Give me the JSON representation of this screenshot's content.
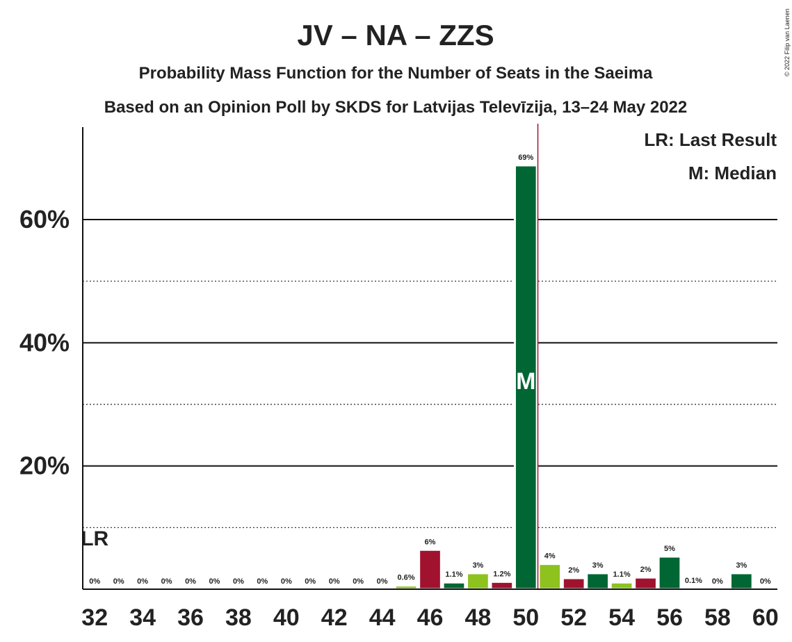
{
  "chart_data": {
    "type": "bar",
    "title": "JV – NA – ZZS",
    "subtitle": "Probability Mass Function for the Number of Seats in the Saeima",
    "subtitle2": "Based on an Opinion Poll by SKDS for Latvijas Televīzija, 13–24 May 2022",
    "copyright": "© 2022 Filip van Laenen",
    "x": [
      32,
      33,
      34,
      35,
      36,
      37,
      38,
      39,
      40,
      41,
      42,
      43,
      44,
      45,
      46,
      47,
      48,
      49,
      50,
      51,
      52,
      53,
      54,
      55,
      56,
      57,
      58,
      59,
      60
    ],
    "values": [
      0,
      0,
      0,
      0,
      0,
      0,
      0,
      0,
      0,
      0,
      0,
      0,
      0,
      0.6,
      6.4,
      1.1,
      2.6,
      1.2,
      68.8,
      4.1,
      1.8,
      2.6,
      1.1,
      1.9,
      5.3,
      0.1,
      0,
      2.6,
      0
    ],
    "value_labels": [
      "0%",
      "0%",
      "0%",
      "0%",
      "0%",
      "0%",
      "0%",
      "0%",
      "0%",
      "0%",
      "0%",
      "0%",
      "0%",
      "0.6%",
      "6%",
      "1.1%",
      "3%",
      "1.2%",
      "69%",
      "4%",
      "2%",
      "3%",
      "1.1%",
      "2%",
      "5%",
      "0.1%",
      "0%",
      "3%",
      "0%"
    ],
    "colors": [
      "#006633",
      "#8dc21f",
      "#a0122e",
      "#006633",
      "#8dc21f",
      "#a0122e",
      "#006633",
      "#8dc21f",
      "#a0122e",
      "#006633",
      "#8dc21f",
      "#a0122e",
      "#006633",
      "#8dc21f",
      "#a0122e",
      "#006633",
      "#8dc21f",
      "#a0122e",
      "#006633",
      "#8dc21f",
      "#a0122e",
      "#006633",
      "#8dc21f",
      "#a0122e",
      "#006633",
      "#8dc21f",
      "#a0122e",
      "#006633",
      "#8dc21f"
    ],
    "xlim": [
      31.5,
      60.5
    ],
    "xticks": [
      32,
      34,
      36,
      38,
      40,
      42,
      44,
      46,
      48,
      50,
      52,
      54,
      56,
      58,
      60
    ],
    "ylim": [
      0,
      75
    ],
    "yticks": [
      {
        "value": 20,
        "label": "20%"
      },
      {
        "value": 40,
        "label": "40%"
      },
      {
        "value": 60,
        "label": "60%"
      }
    ],
    "minor_yticks": [
      10,
      30,
      50
    ],
    "threshold_x": 50.5,
    "last_result": {
      "x": 32,
      "label": "LR"
    },
    "median": {
      "x": 50,
      "label": "M"
    },
    "legend": [
      "LR: Last Result",
      "M: Median"
    ]
  }
}
